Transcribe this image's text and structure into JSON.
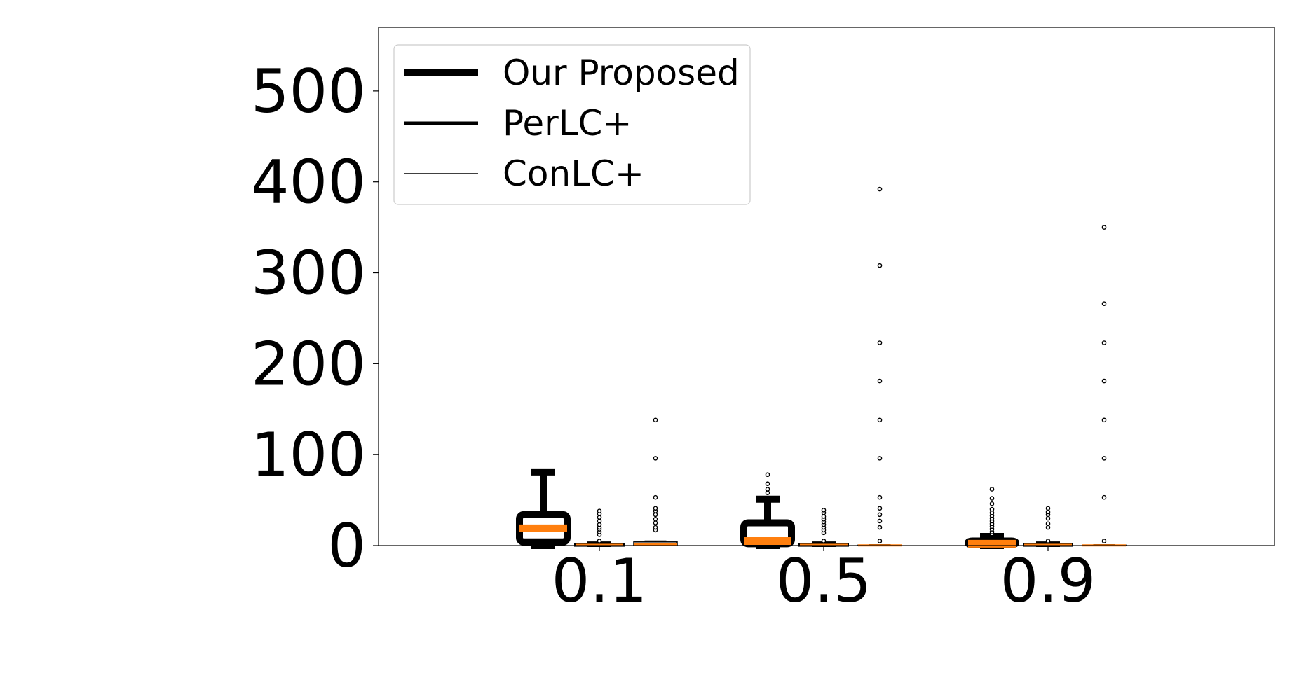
{
  "chart_data": {
    "type": "box",
    "title": "",
    "xlabel": "",
    "ylabel": "",
    "categories": [
      "0.1",
      "0.5",
      "0.9"
    ],
    "ylim": [
      0,
      570
    ],
    "yticks": [
      0,
      100,
      200,
      300,
      400,
      500
    ],
    "grid": false,
    "legend_position": "top-left",
    "colors": {
      "box": "#000000",
      "median": "#ff7f0e",
      "legend_box": "#cccccc"
    },
    "series": [
      {
        "name": "Our Proposed",
        "line_weight": "thick",
        "boxes": [
          {
            "category": "0.1",
            "whisker_low": 0,
            "q1": 4,
            "median": 19,
            "q3": 34,
            "whisker_high": 81,
            "outliers": []
          },
          {
            "category": "0.5",
            "whisker_low": 0,
            "q1": 2,
            "median": 5,
            "q3": 25,
            "whisker_high": 51,
            "outliers": [
              58,
              62,
              68,
              78
            ]
          },
          {
            "category": "0.9",
            "whisker_low": 0,
            "q1": 1,
            "median": 2,
            "q3": 5,
            "whisker_high": 10,
            "outliers": [
              13,
              15,
              18,
              21,
              24,
              27,
              30,
              33,
              36,
              40,
              46,
              52,
              62
            ]
          }
        ]
      },
      {
        "name": "PerLC+",
        "line_weight": "medium",
        "boxes": [
          {
            "category": "0.1",
            "whisker_low": 0,
            "q1": 0.3,
            "median": 0.8,
            "q3": 1.5,
            "whisker_high": 3,
            "outliers": [
              5,
              12,
              15,
              18,
              20,
              23,
              27,
              31,
              35,
              38
            ]
          },
          {
            "category": "0.5",
            "whisker_low": 0,
            "q1": 0.3,
            "median": 0.8,
            "q3": 1.5,
            "whisker_high": 3,
            "outliers": [
              5,
              14,
              17,
              20,
              23,
              26,
              29,
              32,
              36,
              39
            ]
          },
          {
            "category": "0.9",
            "whisker_low": 0,
            "q1": 0.3,
            "median": 0.8,
            "q3": 1.5,
            "whisker_high": 3,
            "outliers": [
              5,
              20,
              24,
              30,
              34,
              37,
              41
            ]
          }
        ]
      },
      {
        "name": "ConLC+",
        "line_weight": "thin",
        "boxes": [
          {
            "category": "0.1",
            "whisker_low": 0,
            "q1": 0.5,
            "median": 1.5,
            "q3": 4,
            "whisker_high": 5,
            "outliers": [
              17,
              20,
              25,
              29,
              34,
              38,
              41,
              53,
              96,
              138
            ]
          },
          {
            "category": "0.5",
            "whisker_low": 0,
            "q1": 0,
            "median": 0.2,
            "q3": 0.5,
            "whisker_high": 1,
            "outliers": [
              5,
              20,
              27,
              34,
              41,
              53,
              96,
              138,
              181,
              223,
              308,
              392
            ]
          },
          {
            "category": "0.9",
            "whisker_low": 0,
            "q1": 0,
            "median": 0.2,
            "q3": 0.5,
            "whisker_high": 1,
            "outliers": [
              5,
              53,
              96,
              138,
              181,
              223,
              266,
              350
            ]
          }
        ]
      }
    ]
  }
}
